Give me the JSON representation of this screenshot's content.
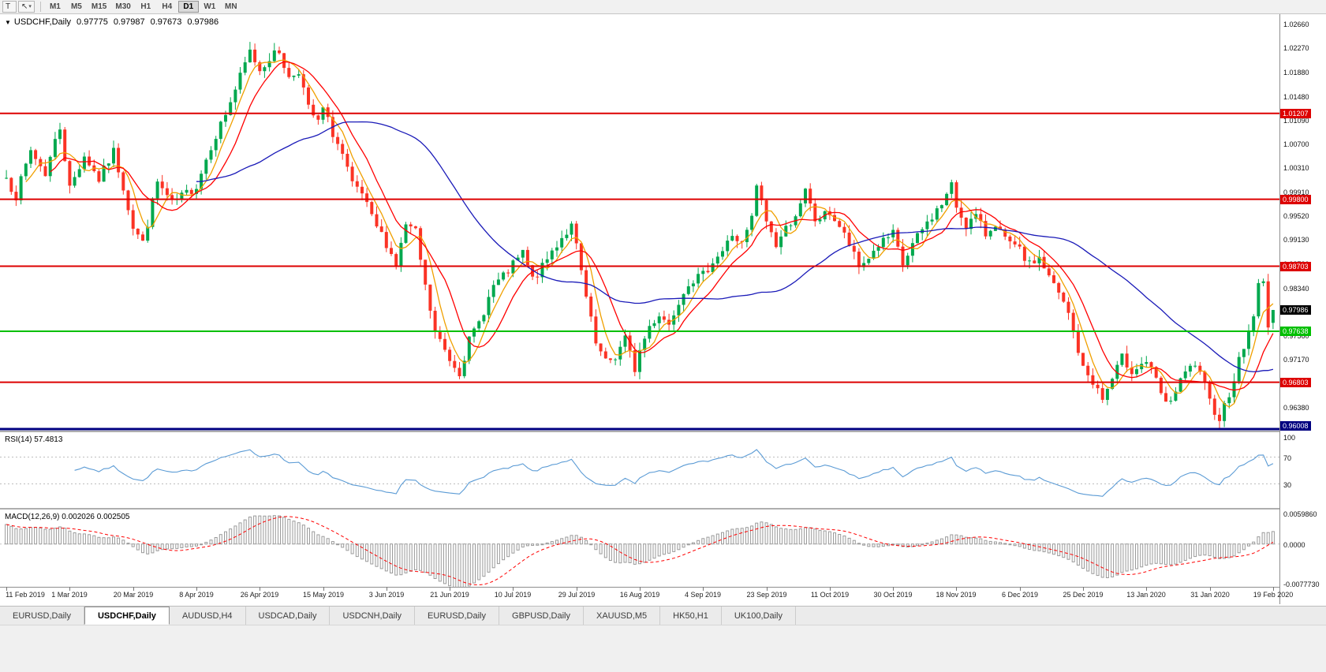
{
  "colors": {
    "bull": "#00a84e",
    "bear": "#fb3325",
    "rsi_line": "#5b9bd5",
    "macd_bar": "#9a9a9a",
    "macd_signal": "#ff0000",
    "price_badge_bg": "#000000"
  },
  "toolbar": {
    "text_tool": "T",
    "cursor_tool": "↖",
    "dropdown_caret": "▾",
    "timeframes": [
      {
        "label": "M1",
        "active": false
      },
      {
        "label": "M5",
        "active": false
      },
      {
        "label": "M15",
        "active": false
      },
      {
        "label": "M30",
        "active": false
      },
      {
        "label": "H1",
        "active": false
      },
      {
        "label": "H4",
        "active": false
      },
      {
        "label": "D1",
        "active": true
      },
      {
        "label": "W1",
        "active": false
      },
      {
        "label": "MN",
        "active": false
      }
    ]
  },
  "symbol_header": {
    "arrow": "▼",
    "symbol": "USDCHF,Daily",
    "open": "0.97775",
    "high": "0.97987",
    "low": "0.97673",
    "close": "0.97986"
  },
  "tabs": [
    {
      "label": "EURUSD,Daily",
      "active": false
    },
    {
      "label": "USDCHF,Daily",
      "active": true
    },
    {
      "label": "AUDUSD,H4",
      "active": false
    },
    {
      "label": "USDCAD,Daily",
      "active": false
    },
    {
      "label": "USDCNH,Daily",
      "active": false
    },
    {
      "label": "EURUSD,Daily",
      "active": false
    },
    {
      "label": "GBPUSD,Daily",
      "active": false
    },
    {
      "label": "XAUUSD,M5",
      "active": false
    },
    {
      "label": "HK50,H1",
      "active": false
    },
    {
      "label": "UK100,Daily",
      "active": false
    }
  ],
  "chart_data": {
    "type": "candlestick",
    "symbol": "USDCHF",
    "timeframe": "Daily",
    "bars": 261,
    "ohlc_last": {
      "open": 0.97775,
      "high": 0.97987,
      "low": 0.97673,
      "close": 0.97986
    },
    "y_axis": {
      "min": 0.9601,
      "max": 1.0283,
      "labels": [
        "1.02660",
        "1.02270",
        "1.01880",
        "1.01480",
        "1.01090",
        "1.00700",
        "1.00310",
        "0.99910",
        "0.99520",
        "0.99130",
        "0.98730",
        "0.98340",
        "0.97950",
        "0.97560",
        "0.97170",
        "0.96770",
        "0.96380"
      ]
    },
    "x_axis": {
      "bars_per_label": 13,
      "labels": [
        "11 Feb 2019",
        "1 Mar 2019",
        "20 Mar 2019",
        "8 Apr 2019",
        "26 Apr 2019",
        "15 May 2019",
        "3 Jun 2019",
        "21 Jun 2019",
        "10 Jul 2019",
        "29 Jul 2019",
        "16 Aug 2019",
        "4 Sep 2019",
        "23 Sep 2019",
        "11 Oct 2019",
        "30 Oct 2019",
        "18 Nov 2019",
        "6 Dec 2019",
        "25 Dec 2019",
        "13 Jan 2020",
        "31 Jan 2020",
        "19 Feb 2020"
      ]
    },
    "close_anchors": [
      [
        0,
        1.0015
      ],
      [
        2,
        0.9985
      ],
      [
        5,
        1.006
      ],
      [
        8,
        1.0022
      ],
      [
        10,
        1.0075
      ],
      [
        11,
        1.0098
      ],
      [
        13,
        0.9998
      ],
      [
        16,
        1.0052
      ],
      [
        19,
        1.0012
      ],
      [
        22,
        1.0058
      ],
      [
        24,
        1.0
      ],
      [
        26,
        0.9935
      ],
      [
        28,
        0.9908
      ],
      [
        31,
        1.0008
      ],
      [
        34,
        0.9972
      ],
      [
        37,
        0.999
      ],
      [
        39,
        1.0002
      ],
      [
        42,
        1.0068
      ],
      [
        45,
        1.012
      ],
      [
        48,
        1.018
      ],
      [
        50,
        1.0222
      ],
      [
        52,
        1.0192
      ],
      [
        54,
        1.0212
      ],
      [
        56,
        1.0222
      ],
      [
        58,
        1.0178
      ],
      [
        60,
        1.0192
      ],
      [
        62,
        1.0128
      ],
      [
        64,
        1.0105
      ],
      [
        65,
        1.0128
      ],
      [
        67,
        1.0088
      ],
      [
        69,
        1.0052
      ],
      [
        71,
        1.0002
      ],
      [
        73,
        0.9988
      ],
      [
        75,
        0.9948
      ],
      [
        78,
        0.9908
      ],
      [
        80,
        0.9872
      ],
      [
        82,
        0.9938
      ],
      [
        84,
        0.9925
      ],
      [
        86,
        0.9835
      ],
      [
        88,
        0.9762
      ],
      [
        91,
        0.9718
      ],
      [
        93,
        0.9698
      ],
      [
        95,
        0.9748
      ],
      [
        97,
        0.9778
      ],
      [
        100,
        0.9838
      ],
      [
        102,
        0.9852
      ],
      [
        104,
        0.9872
      ],
      [
        106,
        0.9892
      ],
      [
        108,
        0.9848
      ],
      [
        110,
        0.9868
      ],
      [
        112,
        0.9895
      ],
      [
        114,
        0.9918
      ],
      [
        116,
        0.9935
      ],
      [
        117,
        0.9902
      ],
      [
        119,
        0.9818
      ],
      [
        121,
        0.9742
      ],
      [
        123,
        0.9712
      ],
      [
        125,
        0.9722
      ],
      [
        127,
        0.9752
      ],
      [
        129,
        0.9702
      ],
      [
        130,
        0.9732
      ],
      [
        132,
        0.9772
      ],
      [
        134,
        0.9792
      ],
      [
        136,
        0.9775
      ],
      [
        138,
        0.9815
      ],
      [
        140,
        0.9845
      ],
      [
        143,
        0.9855
      ],
      [
        145,
        0.988
      ],
      [
        147,
        0.9895
      ],
      [
        149,
        0.9922
      ],
      [
        151,
        0.9905
      ],
      [
        153,
        0.9948
      ],
      [
        154,
        1.0002
      ],
      [
        156,
        0.9945
      ],
      [
        158,
        0.9905
      ],
      [
        160,
        0.9932
      ],
      [
        163,
        0.9968
      ],
      [
        164,
        0.9992
      ],
      [
        166,
        0.9945
      ],
      [
        169,
        0.9958
      ],
      [
        171,
        0.9935
      ],
      [
        173,
        0.9905
      ],
      [
        175,
        0.9868
      ],
      [
        177,
        0.9885
      ],
      [
        179,
        0.9905
      ],
      [
        182,
        0.9922
      ],
      [
        184,
        0.9872
      ],
      [
        186,
        0.9905
      ],
      [
        188,
        0.993
      ],
      [
        190,
        0.9952
      ],
      [
        192,
        0.9972
      ],
      [
        194,
        1.0002
      ],
      [
        195,
        0.9968
      ],
      [
        197,
        0.9938
      ],
      [
        199,
        0.9952
      ],
      [
        201,
        0.9922
      ],
      [
        203,
        0.9942
      ],
      [
        205,
        0.9912
      ],
      [
        208,
        0.9895
      ],
      [
        210,
        0.9872
      ],
      [
        212,
        0.9885
      ],
      [
        214,
        0.9852
      ],
      [
        216,
        0.9825
      ],
      [
        218,
        0.9792
      ],
      [
        220,
        0.9732
      ],
      [
        221,
        0.9702
      ],
      [
        223,
        0.9682
      ],
      [
        225,
        0.9652
      ],
      [
        227,
        0.9685
      ],
      [
        229,
        0.972
      ],
      [
        231,
        0.97
      ],
      [
        234,
        0.9715
      ],
      [
        236,
        0.9682
      ],
      [
        238,
        0.9642
      ],
      [
        240,
        0.9665
      ],
      [
        242,
        0.9695
      ],
      [
        244,
        0.971
      ],
      [
        246,
        0.9672
      ],
      [
        247,
        0.9648
      ],
      [
        249,
        0.9622
      ],
      [
        251,
        0.9662
      ],
      [
        253,
        0.9715
      ],
      [
        255,
        0.9762
      ],
      [
        256,
        0.9792
      ],
      [
        257,
        0.9838
      ],
      [
        258,
        0.9842
      ],
      [
        259,
        0.9777
      ],
      [
        260,
        0.97986
      ]
    ],
    "moving_averages": [
      {
        "period": 5,
        "color": "#f0a000"
      },
      {
        "period": 10,
        "color": "#ff0000"
      },
      {
        "period": 40,
        "color": "#1a1ab8"
      }
    ],
    "horizontal_lines": [
      {
        "value": 1.01207,
        "label": "1.01207",
        "color": "#dd0000",
        "width": 2
      },
      {
        "value": 0.998,
        "label": "0.99800",
        "color": "#dd0000",
        "width": 2
      },
      {
        "value": 0.98703,
        "label": "0.98703",
        "color": "#dd0000",
        "width": 2
      },
      {
        "value": 0.97638,
        "label": "0.97638",
        "color": "#00bf00",
        "width": 2
      },
      {
        "value": 0.96803,
        "label": "0.96803",
        "color": "#dd0000",
        "width": 2
      },
      {
        "value": 0.96008,
        "label": "0.96008",
        "color": "#000080",
        "width": 3
      }
    ],
    "current_price": {
      "value": 0.97986,
      "label": "0.97986"
    },
    "rsi_panel": {
      "label": "RSI(14) 57.4813",
      "period": 14,
      "value": 57.4813,
      "range": [
        0,
        100
      ],
      "levels": [
        70,
        30
      ],
      "axis": [
        {
          "value": 100,
          "label": "100"
        },
        {
          "value": 70,
          "label": "70"
        },
        {
          "value": 30,
          "label": "30"
        }
      ]
    },
    "macd_panel": {
      "label": "MACD(12,26,9) 0.002026 0.002505",
      "fast": 12,
      "slow": 26,
      "signal": 9,
      "macd_value": "0.002026",
      "signal_value": "0.002505",
      "range": [
        -0.007773,
        0.005986
      ],
      "axis": [
        {
          "value": 0.005986,
          "label": "0.0059860"
        },
        {
          "value": 0.0,
          "label": "0.0000"
        },
        {
          "value": -0.007773,
          "label": "-0.0077730"
        }
      ]
    }
  }
}
